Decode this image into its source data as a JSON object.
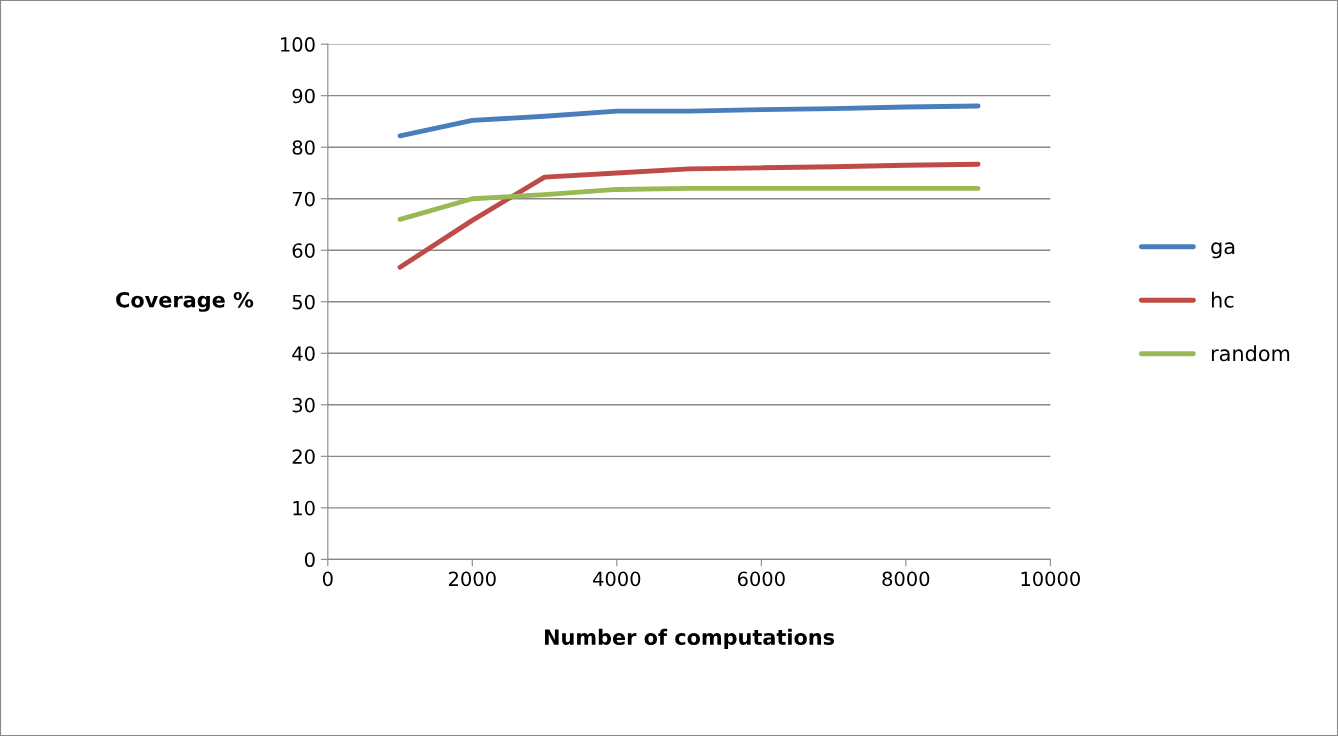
{
  "chart_data": {
    "type": "line",
    "xlabel": "Number of computations",
    "ylabel": "Coverage %",
    "x": [
      1000,
      2000,
      3000,
      4000,
      5000,
      6000,
      7000,
      8000,
      9000
    ],
    "series": [
      {
        "name": "ga",
        "color": "#4a7ebb",
        "values": [
          82.2,
          85.2,
          86,
          87,
          87,
          87.3,
          87.5,
          87.8,
          88
        ]
      },
      {
        "name": "hc",
        "color": "#be4b48",
        "values": [
          56.7,
          65.8,
          74.2,
          75,
          75.8,
          76,
          76.2,
          76.5,
          76.7
        ]
      },
      {
        "name": "random",
        "color": "#98b954",
        "values": [
          66,
          70,
          70.8,
          71.8,
          72,
          72,
          72,
          72,
          72
        ]
      }
    ],
    "xlim": [
      0,
      10000
    ],
    "xticks": [
      0,
      2000,
      4000,
      6000,
      8000,
      10000
    ],
    "ylim": [
      0,
      100
    ],
    "yticks": [
      0,
      10,
      20,
      30,
      40,
      50,
      60,
      70,
      80,
      90,
      100
    ],
    "grid": "y",
    "legend": "right",
    "marker": "none",
    "line_style": "solid"
  }
}
